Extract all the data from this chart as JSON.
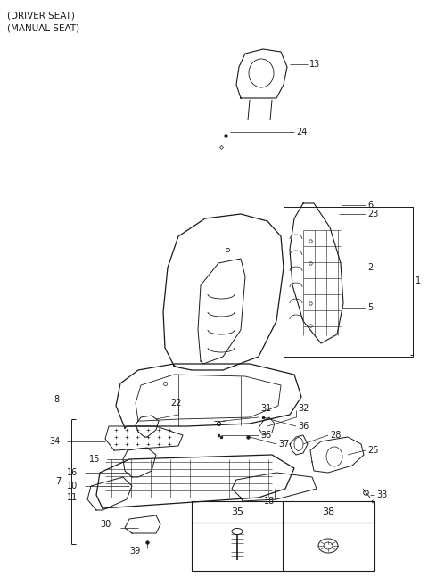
{
  "bg_color": "#ffffff",
  "line_color": "#1a1a1a",
  "title_lines": [
    "(DRIVER SEAT)",
    "(MANUAL SEAT)"
  ],
  "label_fontsize": 7.0,
  "title_fontsize": 7.5,
  "figsize": [
    4.8,
    6.56
  ],
  "dpi": 100
}
